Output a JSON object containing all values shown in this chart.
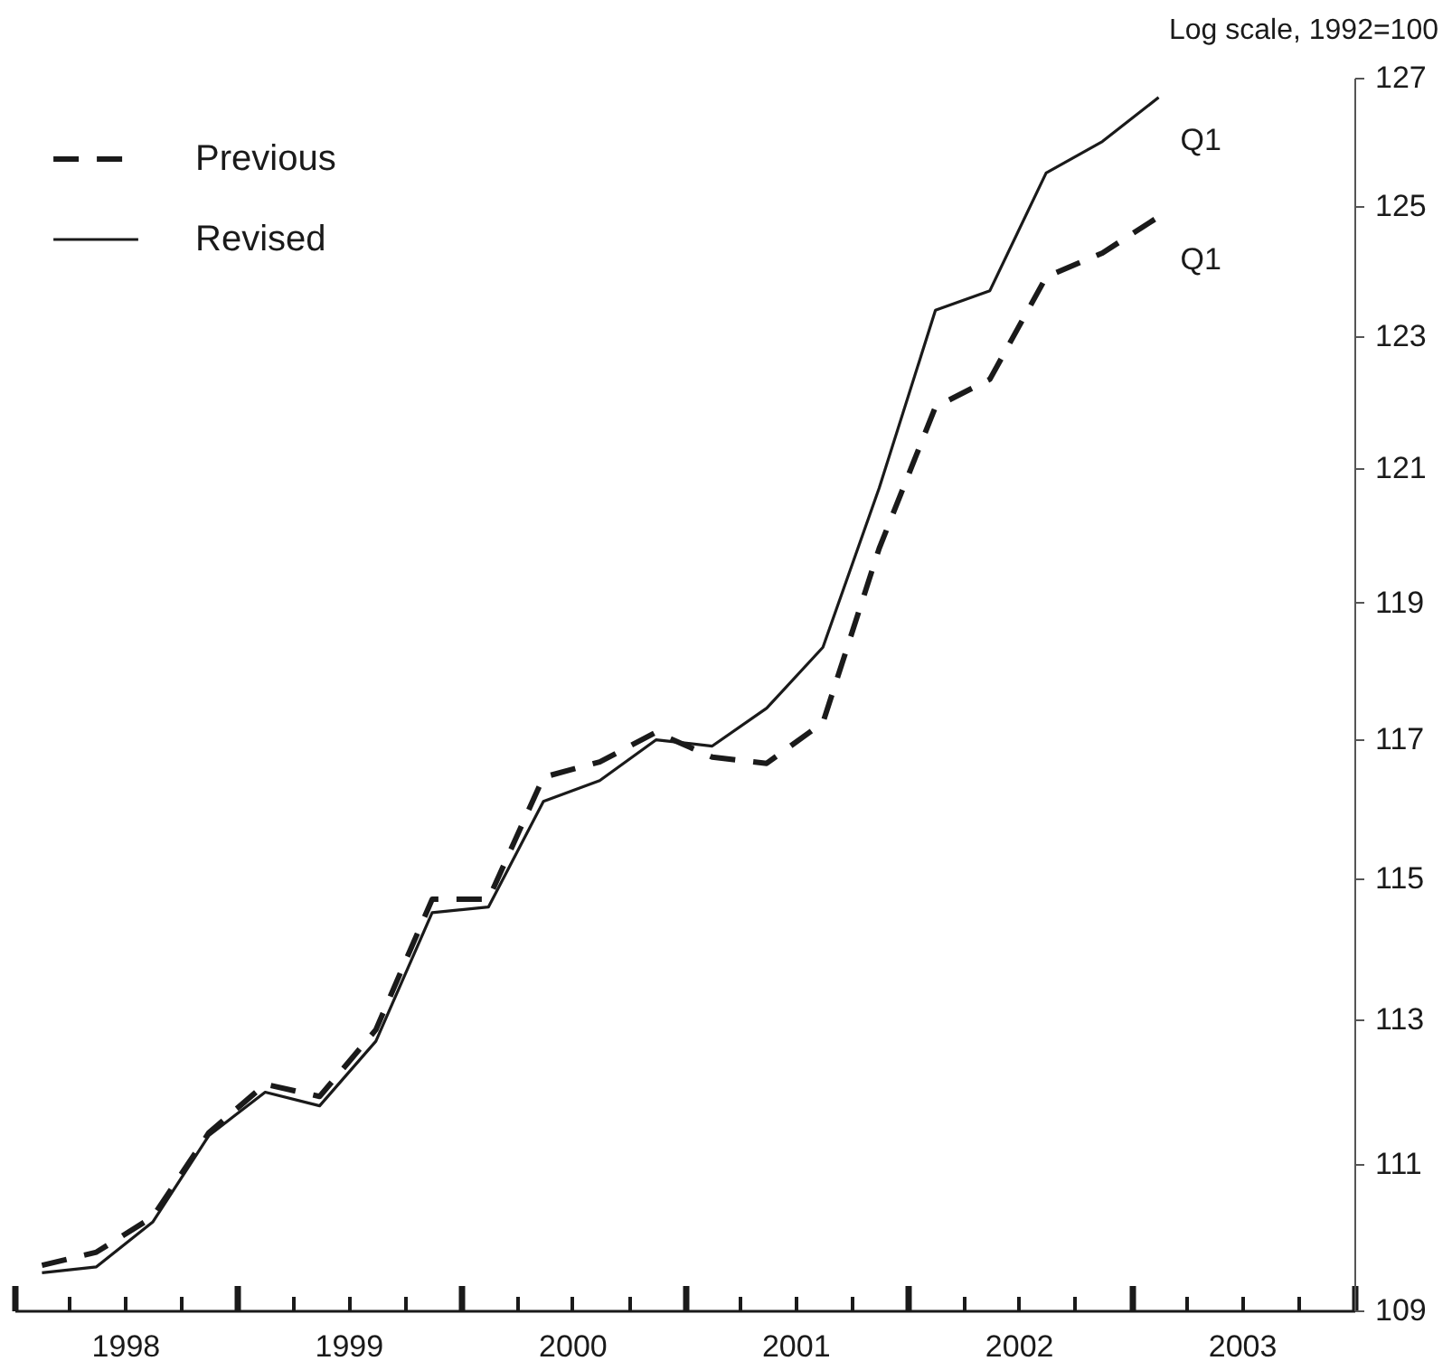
{
  "chart_data": {
    "type": "line",
    "ylabel": "Log scale, 1992=100",
    "log": true,
    "legend": "top left",
    "x": [
      "1998-02-15",
      "1998-05-15",
      "1998-08-15",
      "1998-11-15",
      "1999-02-15",
      "1999-05-15",
      "1999-08-15",
      "1999-11-15",
      "2000-02-15",
      "2000-05-15",
      "2000-08-15",
      "2000-11-15",
      "2001-02-15",
      "2001-05-15",
      "2001-08-15",
      "2001-11-15",
      "2002-02-15",
      "2002-05-15",
      "2002-08-15",
      "2002-11-15",
      "2003-02-15"
    ],
    "series": [
      {
        "name": "Previous",
        "color": "#1a1a1a",
        "line_style": "dashed",
        "values": [
          109.61,
          109.79,
          110.27,
          111.43,
          112.1,
          111.93,
          112.86,
          114.7,
          114.7,
          116.45,
          116.67,
          117.1,
          116.74,
          116.65,
          117.24,
          119.8,
          121.92,
          122.34,
          123.9,
          124.27,
          124.83
        ]
      },
      {
        "name": "Revised",
        "color": "#1a1a1a",
        "line_style": "solid",
        "values": [
          109.51,
          109.59,
          110.2,
          111.39,
          111.99,
          111.8,
          112.7,
          114.51,
          114.59,
          116.1,
          116.4,
          116.99,
          116.9,
          117.45,
          118.34,
          120.7,
          123.39,
          123.69,
          125.51,
          126.0,
          126.69
        ]
      }
    ],
    "annotations": [
      {
        "text": "Q1",
        "x": "2003-02-15",
        "y": 126.69
      },
      {
        "text": "Q1",
        "x": "2003-02-15",
        "y": 124.83
      }
    ],
    "xlim": [
      "1998-01-01",
      "2004-01-01"
    ],
    "xticks": [
      {
        "value": "1998-01-01",
        "label": null
      },
      {
        "value": "1998-04-01",
        "label": null
      },
      {
        "value": "1998-07-01",
        "label": "1998"
      },
      {
        "value": "1998-10-01",
        "label": null
      },
      {
        "value": "1999-01-01",
        "label": null
      },
      {
        "value": "1999-04-01",
        "label": null
      },
      {
        "value": "1999-07-01",
        "label": "1999"
      },
      {
        "value": "1999-10-01",
        "label": null
      },
      {
        "value": "2000-01-01",
        "label": null
      },
      {
        "value": "2000-04-01",
        "label": null
      },
      {
        "value": "2000-07-01",
        "label": "2000"
      },
      {
        "value": "2000-10-01",
        "label": null
      },
      {
        "value": "2001-01-01",
        "label": null
      },
      {
        "value": "2001-04-01",
        "label": null
      },
      {
        "value": "2001-07-01",
        "label": "2001"
      },
      {
        "value": "2001-10-01",
        "label": null
      },
      {
        "value": "2002-01-01",
        "label": null
      },
      {
        "value": "2002-04-01",
        "label": null
      },
      {
        "value": "2002-07-01",
        "label": "2002"
      },
      {
        "value": "2002-10-01",
        "label": null
      },
      {
        "value": "2003-01-01",
        "label": null
      },
      {
        "value": "2003-04-01",
        "label": null
      },
      {
        "value": "2003-07-01",
        "label": "2003"
      },
      {
        "value": "2003-10-01",
        "label": null
      },
      {
        "value": "2004-01-01",
        "label": null
      }
    ],
    "ylim": [
      109,
      127
    ],
    "yticks": [
      109,
      111,
      113,
      115,
      117,
      119,
      121,
      123,
      125,
      127
    ]
  }
}
